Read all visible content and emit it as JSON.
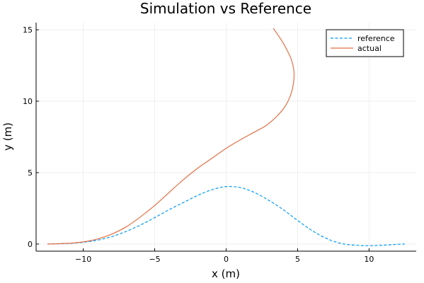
{
  "chart_data": {
    "type": "line",
    "title": "Simulation vs Reference",
    "xlabel": "x (m)",
    "ylabel": "y (m)",
    "xlim": [
      -13.3,
      13.3
    ],
    "ylim": [
      -0.5,
      15.5
    ],
    "xticks": [
      -10,
      -5,
      0,
      5,
      10
    ],
    "yticks": [
      0,
      5,
      10,
      15
    ],
    "xtick_labels": [
      "−10",
      "−5",
      "0",
      "5",
      "10"
    ],
    "ytick_labels": [
      "0",
      "5",
      "10",
      "15"
    ],
    "grid": true,
    "legend_position": "top-right",
    "series": [
      {
        "name": "reference",
        "color": "#009AFA",
        "dash": "dashed",
        "x": [
          -12.5,
          -11,
          -10,
          -9,
          -8,
          -7,
          -6,
          -5,
          -4,
          -3,
          -2,
          -1,
          0,
          1,
          2,
          3,
          4,
          5,
          6,
          7,
          8,
          9,
          10,
          11,
          12,
          12.5
        ],
        "y": [
          0.0,
          0.04,
          0.12,
          0.27,
          0.52,
          0.88,
          1.33,
          1.85,
          2.4,
          2.9,
          3.4,
          3.8,
          4.02,
          3.95,
          3.6,
          3.05,
          2.4,
          1.65,
          0.95,
          0.4,
          0.05,
          -0.08,
          -0.12,
          -0.08,
          -0.02,
          0.0
        ]
      },
      {
        "name": "actual",
        "color": "#E26F46",
        "dash": "solid",
        "x": [
          -12.5,
          -11,
          -10,
          -9,
          -8,
          -7,
          -6,
          -5,
          -4,
          -3,
          -2,
          -1,
          0,
          1,
          2,
          2.8,
          3.5,
          4.1,
          4.5,
          4.7,
          4.75,
          4.6,
          4.3,
          3.85,
          3.3
        ],
        "y": [
          0.0,
          0.05,
          0.15,
          0.35,
          0.7,
          1.2,
          1.9,
          2.7,
          3.6,
          4.5,
          5.3,
          6.0,
          6.7,
          7.3,
          7.85,
          8.3,
          8.9,
          9.6,
          10.4,
          11.2,
          12.0,
          12.8,
          13.5,
          14.3,
          15.1
        ]
      }
    ]
  }
}
